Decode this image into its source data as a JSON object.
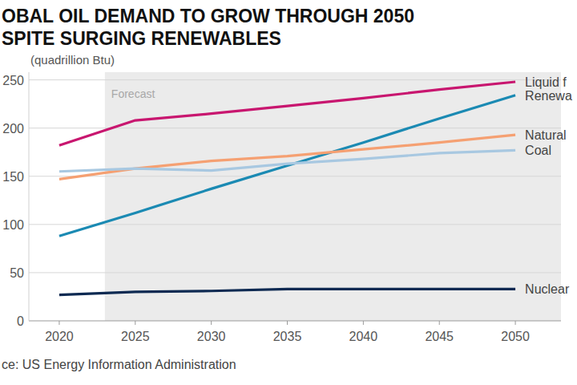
{
  "chart_data": {
    "type": "line",
    "title": "OBAL OIL DEMAND TO GROW THROUGH 2050",
    "subtitle": "SPITE SURGING RENEWABLES",
    "y_label": "(quadrillion Btu)",
    "source": "ce: US Energy Information Administration",
    "forecast": {
      "label": "Forecast",
      "from": 2023
    },
    "x": [
      2020,
      2025,
      2030,
      2035,
      2040,
      2045,
      2050
    ],
    "xlim": [
      2018,
      2053
    ],
    "xticks": [
      2020,
      2025,
      2030,
      2035,
      2040,
      2045,
      2050
    ],
    "ylim": [
      0,
      258
    ],
    "yticks": [
      0,
      50,
      100,
      150,
      200,
      250
    ],
    "grid": true,
    "series": [
      {
        "name": "Liquid f",
        "color": "#c8166f",
        "values": [
          182,
          208,
          215,
          223,
          231,
          240,
          248
        ]
      },
      {
        "name": "Renewa",
        "color": "#1b8ab3",
        "values": [
          88,
          112,
          137,
          161,
          185,
          210,
          234
        ]
      },
      {
        "name": "Natural",
        "color": "#f5a072",
        "values": [
          147,
          158,
          166,
          171,
          178,
          185,
          193
        ]
      },
      {
        "name": "Coal",
        "color": "#a8c8e1",
        "values": [
          155,
          158,
          156,
          163,
          168,
          174,
          177
        ]
      },
      {
        "name": "Nuclear",
        "color": "#0e2a52",
        "values": [
          27,
          30,
          31,
          33,
          33,
          33,
          33
        ]
      }
    ]
  }
}
